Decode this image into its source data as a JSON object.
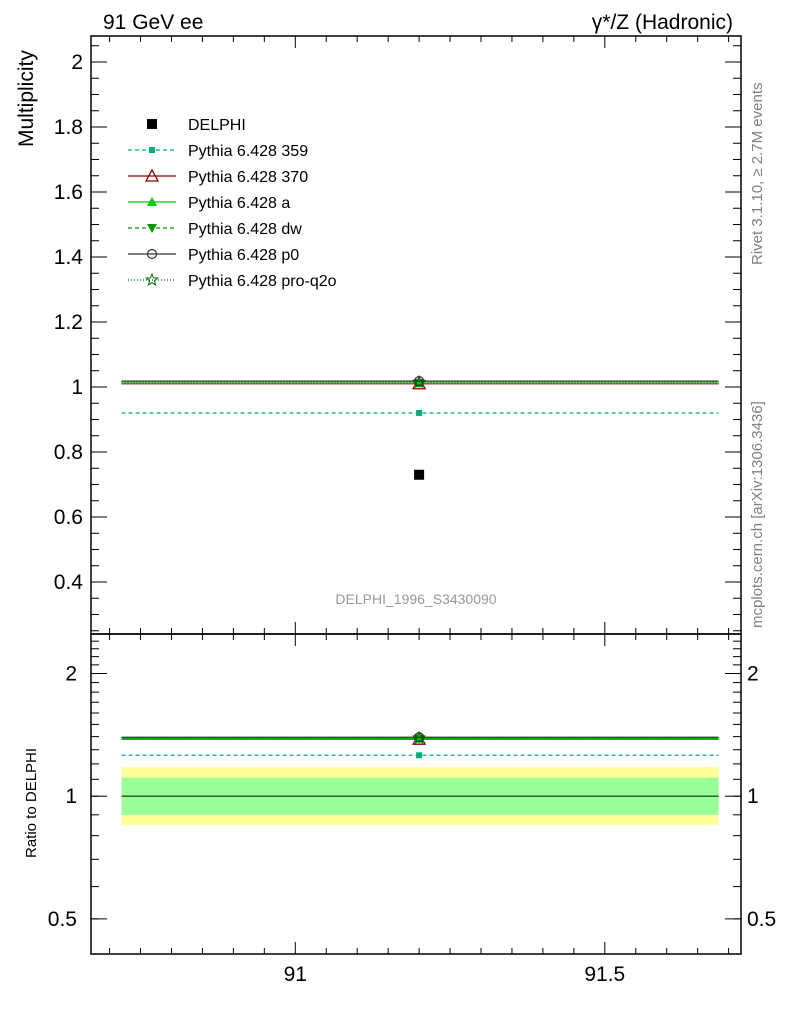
{
  "header": {
    "left": "91 GeV ee",
    "right": "γ*/Z (Hadronic)"
  },
  "side_labels": {
    "rivet": "Rivet 3.1.10, ≥ 2.7M events",
    "mcplots": "mcplots.cern.ch [arXiv:1306.3436]"
  },
  "analysis_id": "DELPHI_1996_S3430090",
  "colors": {
    "delphi": "#000000",
    "p359": "#00b07a",
    "p370": "#8b0000",
    "a": "#00cc00",
    "dw": "#009900",
    "p0": "#333333",
    "proq2o": "#006600",
    "band_inner": "#99ff99",
    "band_outer": "#ffff99"
  },
  "chart_data": [
    {
      "type": "line",
      "ylabel": "Multiplicity",
      "xlim": [
        90.67,
        91.72
      ],
      "ylim": [
        0.24,
        2.08
      ],
      "yticks": [
        0.4,
        0.6,
        0.8,
        1.0,
        1.2,
        1.4,
        1.6,
        1.8,
        2.0
      ],
      "ytick_labels": [
        "0.4",
        "0.6",
        "0.8",
        "1",
        "1.2",
        "1.4",
        "1.6",
        "1.8",
        "2"
      ],
      "bin": [
        90.7,
        91.7
      ],
      "x_center": 91.2,
      "series": [
        {
          "key": "delphi",
          "name": "DELPHI",
          "value": 0.73,
          "marker": "square"
        },
        {
          "key": "p359",
          "name": "Pythia 6.428 359",
          "value": 0.92,
          "marker": "smallsquare",
          "dash": "4,3"
        },
        {
          "key": "p370",
          "name": "Pythia 6.428 370",
          "value": 1.01,
          "marker": "triangle-open"
        },
        {
          "key": "a",
          "name": "Pythia 6.428 a",
          "value": 1.012,
          "marker": "triangle"
        },
        {
          "key": "dw",
          "name": "Pythia 6.428 dw",
          "value": 1.012,
          "marker": "triangle-down",
          "dash": "4,3"
        },
        {
          "key": "p0",
          "name": "Pythia 6.428 p0",
          "value": 1.018,
          "marker": "circle-open"
        },
        {
          "key": "proq2o",
          "name": "Pythia 6.428 pro-q2o",
          "value": 1.015,
          "marker": "star",
          "dash": "1,2"
        }
      ]
    },
    {
      "type": "line",
      "ylabel": "Ratio to DELPHI",
      "ylim": [
        0.41,
        2.5
      ],
      "log_y": true,
      "yticks": [
        0.5,
        1,
        2
      ],
      "ytick_labels": [
        "0.5",
        "1",
        "2"
      ],
      "xticks": [
        91,
        91.5
      ],
      "xtick_labels": [
        "91",
        "91.5"
      ],
      "band_inner": [
        0.9,
        1.11
      ],
      "band_outer": [
        0.85,
        1.18
      ],
      "ratios": [
        {
          "key": "p359",
          "value": 1.26
        },
        {
          "key": "p370",
          "value": 1.38
        },
        {
          "key": "a",
          "value": 1.385
        },
        {
          "key": "dw",
          "value": 1.385
        },
        {
          "key": "p0",
          "value": 1.395
        },
        {
          "key": "proq2o",
          "value": 1.39
        }
      ]
    }
  ]
}
